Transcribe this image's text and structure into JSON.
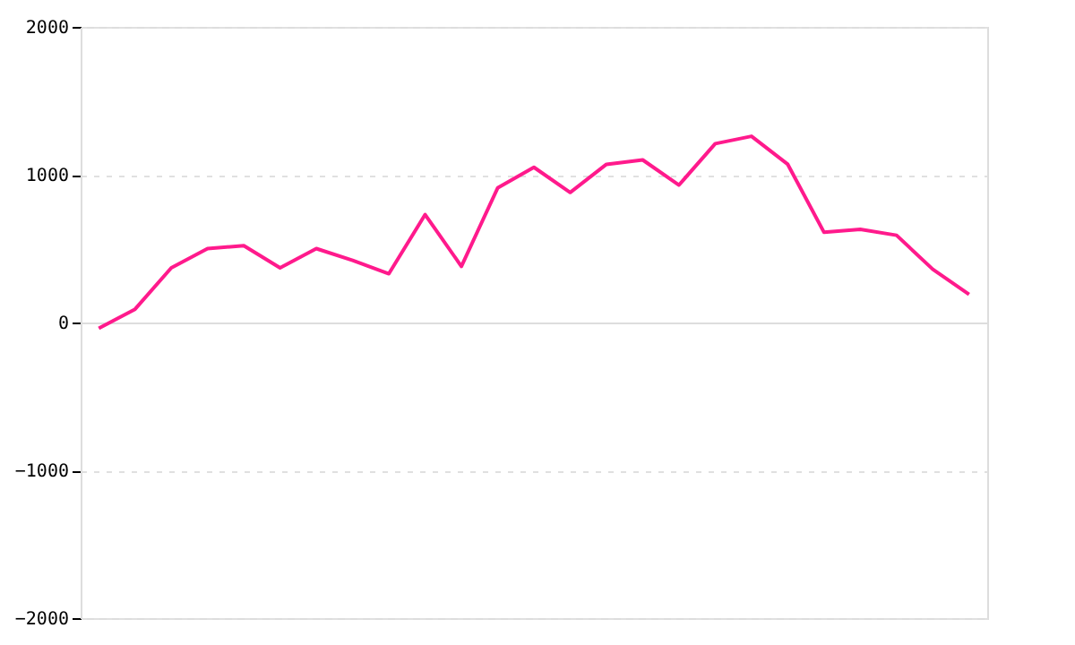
{
  "chart_data": {
    "type": "line",
    "categories": [
      null,
      null,
      null,
      null,
      null,
      null,
      null,
      null,
      null,
      null,
      null,
      null,
      null,
      null,
      null,
      null,
      null,
      null,
      null,
      null,
      null,
      null,
      null,
      null,
      null
    ],
    "series": [
      {
        "color": "#ff1a8c",
        "values": [
          -40,
          90,
          370,
          500,
          520,
          370,
          500,
          420,
          330,
          730,
          380,
          910,
          1050,
          880,
          1070,
          1100,
          930,
          1210,
          1260,
          1070,
          610,
          630,
          590,
          360,
          190
        ]
      }
    ],
    "ylim": [
      -2000,
      2000
    ],
    "yticks": [
      -2000,
      -1000,
      0,
      1000,
      2000
    ],
    "grid": "y",
    "tick_labels": "y",
    "marker": "none",
    "line_style": "solid"
  }
}
